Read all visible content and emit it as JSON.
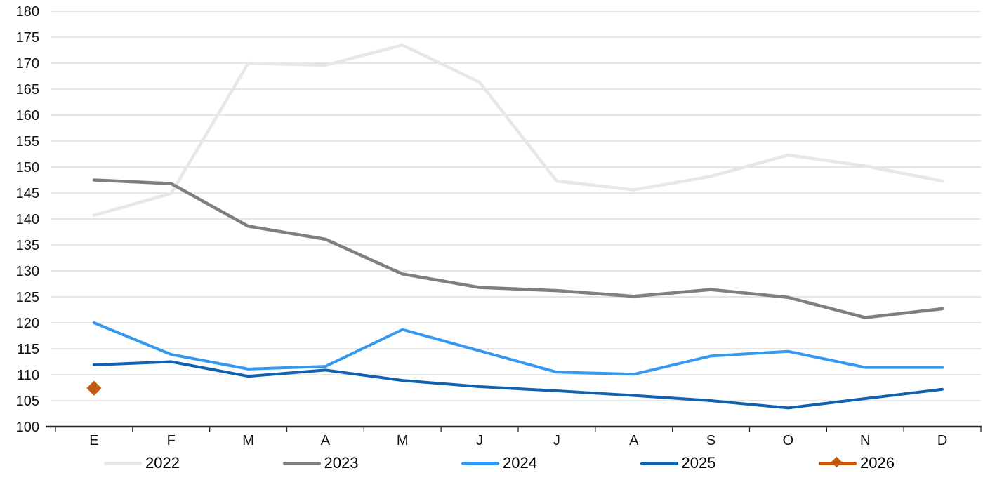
{
  "chart_data": {
    "type": "line",
    "title": "",
    "xlabel": "",
    "ylabel": "",
    "grid": true,
    "legend_position": "bottom",
    "background_color": "#FFFFFF",
    "grid_color": "#D6D6D6",
    "axis_color": "#262626",
    "text_color": "#111111",
    "ylim": [
      100,
      180
    ],
    "ytick_step": 5,
    "y_tick_labels": [
      "100",
      "105",
      "110",
      "115",
      "120",
      "125",
      "130",
      "135",
      "140",
      "145",
      "150",
      "155",
      "160",
      "165",
      "170",
      "175",
      "180"
    ],
    "categories": [
      "E",
      "F",
      "M",
      "A",
      "M",
      "J",
      "J",
      "A",
      "S",
      "O",
      "N",
      "D"
    ],
    "series": [
      {
        "name": "2022",
        "color": "#E8E7E7",
        "stroke_width": 4.5,
        "marker": "none",
        "values": [
          140.7,
          144.9,
          170.0,
          169.6,
          173.5,
          166.3,
          147.3,
          145.6,
          148.2,
          152.3,
          150.2,
          147.3
        ]
      },
      {
        "name": "2023",
        "color": "#7F7F7F",
        "stroke_width": 4.5,
        "marker": "none",
        "values": [
          147.5,
          146.8,
          138.6,
          136.1,
          129.4,
          126.8,
          126.2,
          125.1,
          126.4,
          124.9,
          121.0,
          122.7
        ]
      },
      {
        "name": "2024",
        "color": "#3498F0",
        "stroke_width": 4,
        "marker": "none",
        "values": [
          120.0,
          113.9,
          111.1,
          111.6,
          118.7,
          114.6,
          110.5,
          110.1,
          113.6,
          114.5,
          111.4,
          111.4
        ]
      },
      {
        "name": "2025",
        "color": "#1161AF",
        "stroke_width": 4,
        "marker": "none",
        "values": [
          111.9,
          112.5,
          109.7,
          110.9,
          108.9,
          107.7,
          106.9,
          106.0,
          105.0,
          103.6,
          105.4,
          107.2
        ]
      },
      {
        "name": "2026",
        "color": "#C45911",
        "stroke_width": 3,
        "marker": "diamond",
        "values": [
          107.4,
          null,
          null,
          null,
          null,
          null,
          null,
          null,
          null,
          null,
          null,
          null
        ]
      }
    ]
  }
}
